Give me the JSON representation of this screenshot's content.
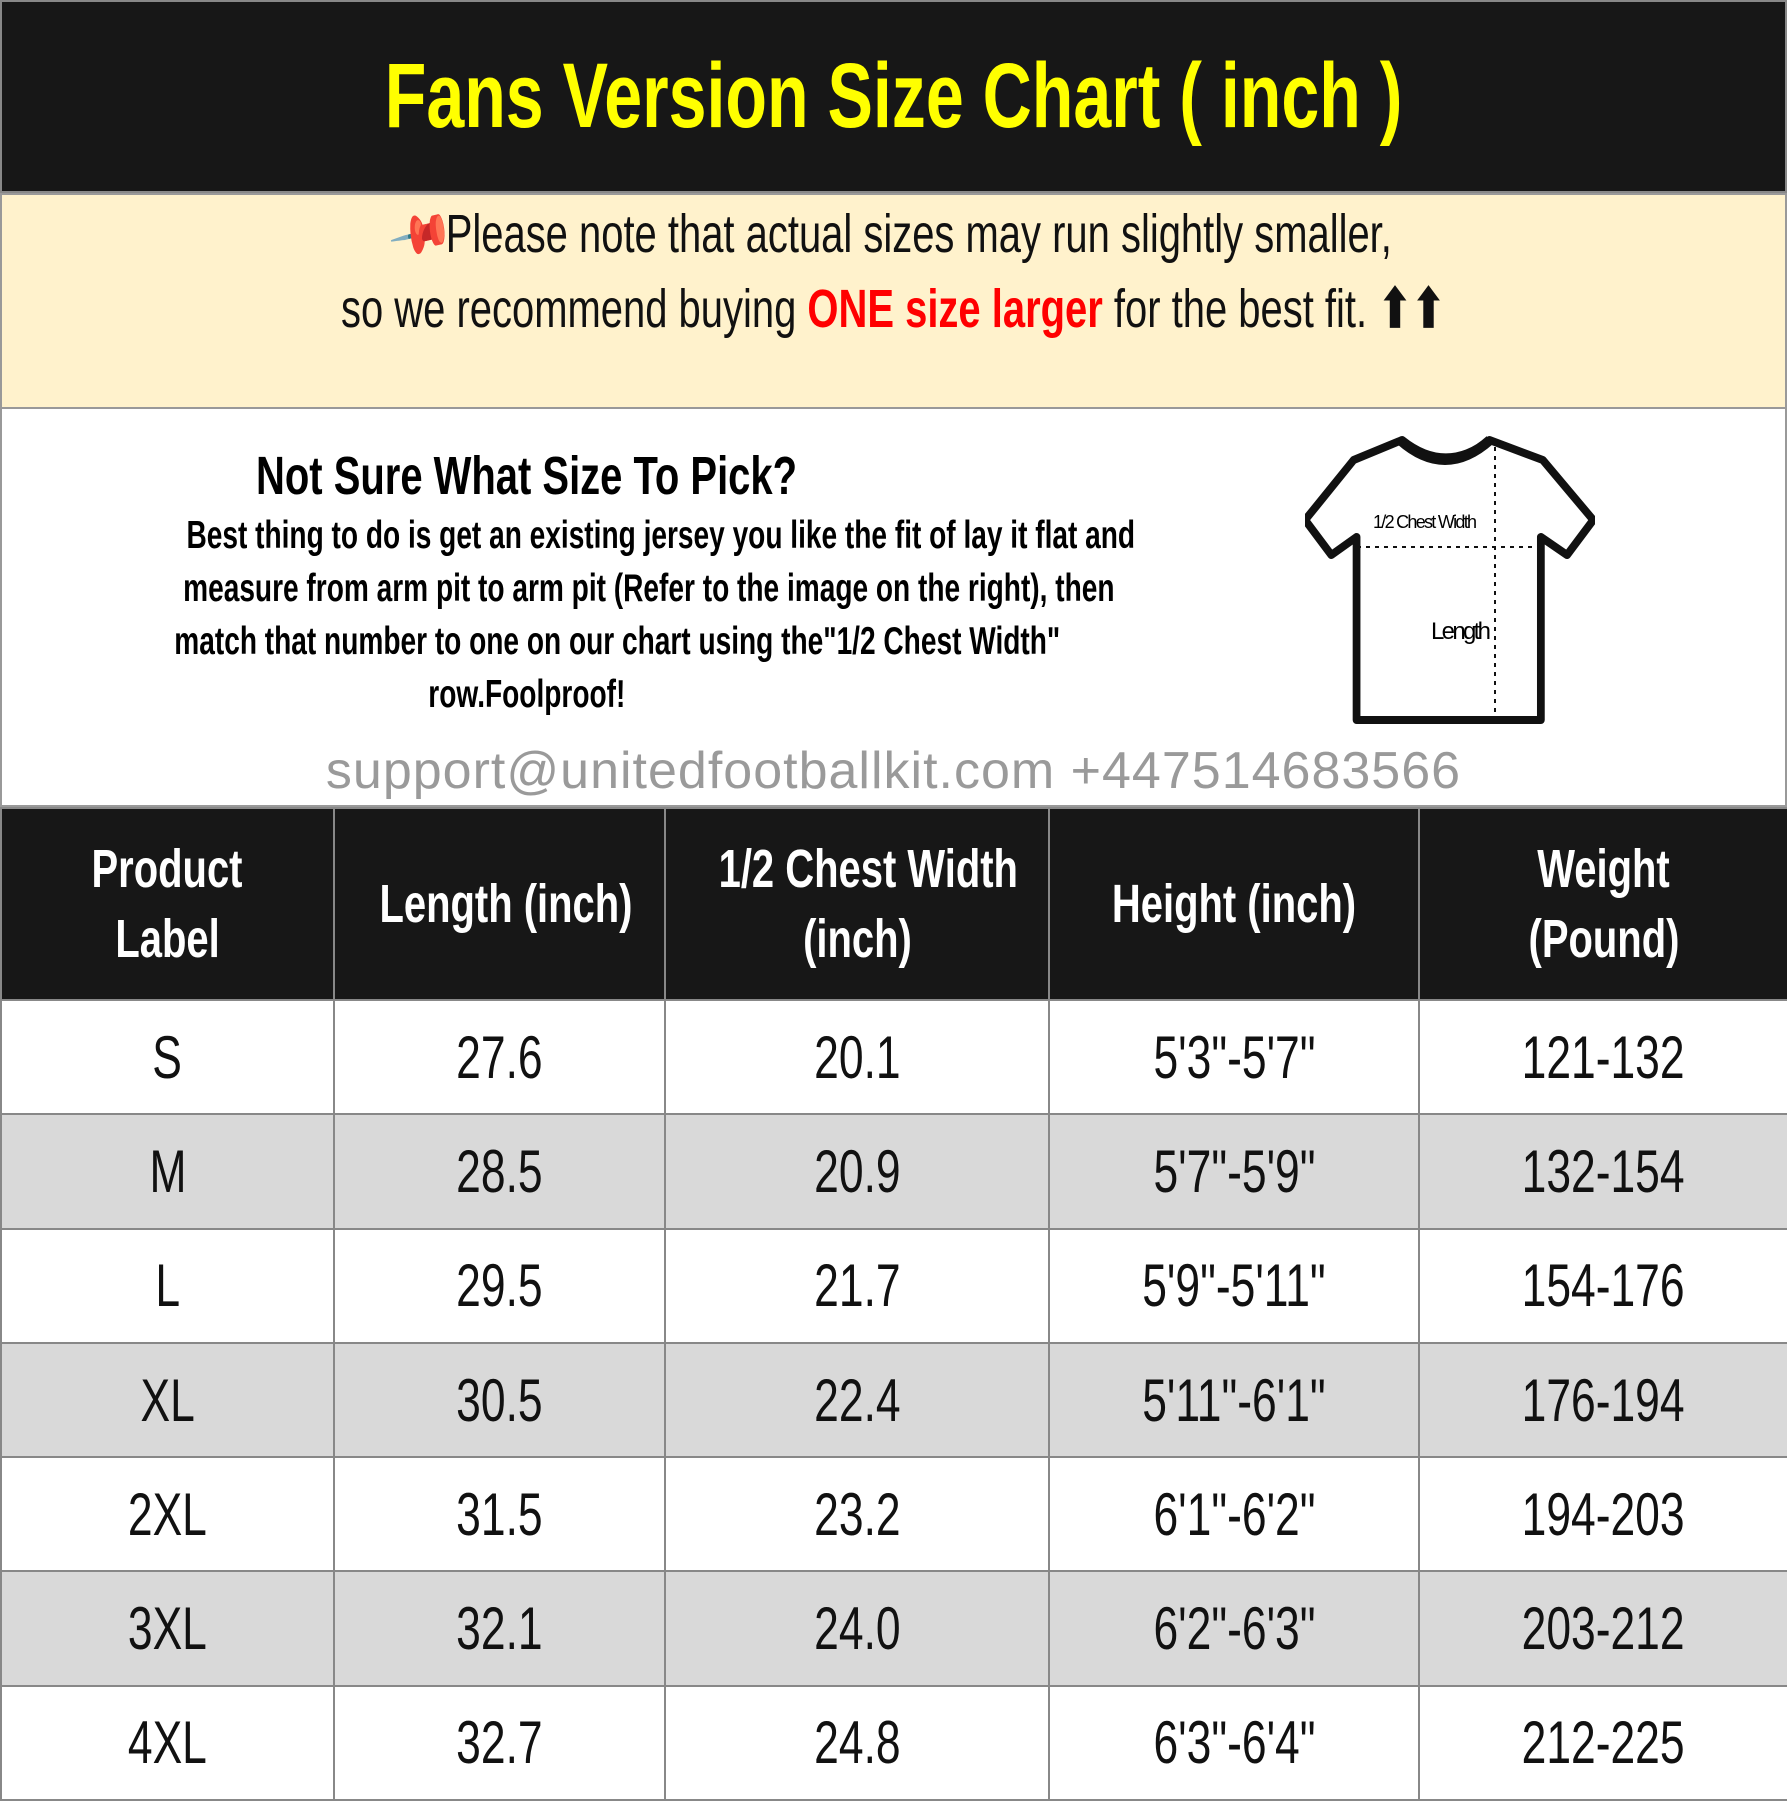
{
  "title": "Fans Version Size Chart ( inch )",
  "note": {
    "icon": "pushpin-icon",
    "line1": "Please note that actual sizes may run slightly smaller,",
    "line2_pre": "so we recommend buying ",
    "line2_red": "ONE size larger",
    "line2_post": " for the best fit. ",
    "arrows": "⬆⬆",
    "accent": "#ff0000"
  },
  "info": {
    "heading": "Not Sure What Size To Pick?",
    "body": [
      "Best thing to do is get an existing jersey you like the fit of lay it flat and",
      "measure from arm pit to arm pit (Refer to the image on the right), then",
      "match that number to one on our chart using the\"1/2 Chest Width\"",
      "row.Foolproof!"
    ],
    "shirt_labels": {
      "chest": "1/2 Chest Width",
      "length": "Length"
    }
  },
  "watermark": "support@unitedfootballkit.com  +447514683566",
  "table": {
    "headers": [
      [
        "Product",
        "Label"
      ],
      [
        "Length (inch)"
      ],
      [
        "1/2 Chest Width",
        "(inch)"
      ],
      [
        "Height (inch)"
      ],
      [
        "Weight",
        "(Pound)"
      ]
    ],
    "rows": [
      [
        "S",
        "27.6",
        "20.1",
        "5'3\"-5'7\"",
        "121-132"
      ],
      [
        "M",
        "28.5",
        "20.9",
        "5'7\"-5'9\"",
        "132-154"
      ],
      [
        "L",
        "29.5",
        "21.7",
        "5'9\"-5'11\"",
        "154-176"
      ],
      [
        "XL",
        "30.5",
        "22.4",
        "5'11\"-6'1\"",
        "176-194"
      ],
      [
        "2XL",
        "31.5",
        "23.2",
        "6'1\"-6'2\"",
        "194-203"
      ],
      [
        "3XL",
        "32.1",
        "24.0",
        "6'2\"-6'3\"",
        "203-212"
      ],
      [
        "4XL",
        "32.7",
        "24.8",
        "6'3\"-6'4\"",
        "212-225"
      ]
    ]
  }
}
